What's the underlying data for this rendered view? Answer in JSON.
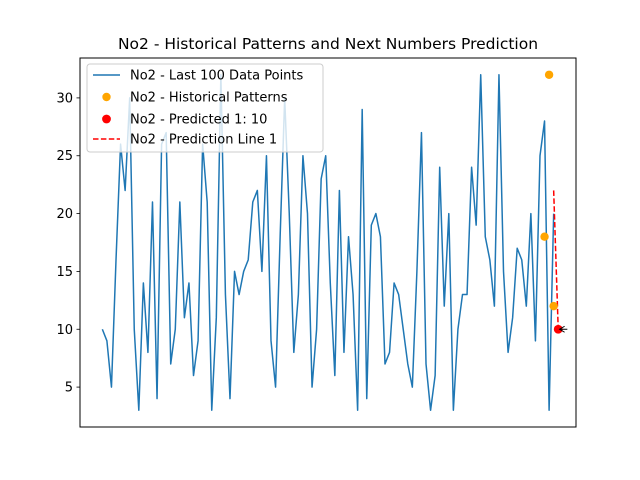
{
  "chart_data": {
    "type": "line",
    "title": "No2 - Historical Patterns and Next Numbers Prediction",
    "xlabel": "",
    "ylabel": "",
    "xlim": [
      -4.9,
      103.9
    ],
    "ylim": [
      1.55,
      33.45
    ],
    "yticks": [
      5,
      10,
      15,
      20,
      25,
      30
    ],
    "xticks_visible": false,
    "grid": false,
    "legend_position": "top-left",
    "colors": {
      "line": "#1f77b4",
      "patterns": "#ffa500",
      "predicted": "#ff0000",
      "prediction_line": "#ff0000",
      "arrow": "#000000"
    },
    "series": [
      {
        "name": "No2 - Last 100 Data Points",
        "kind": "line",
        "x_start": 0,
        "values": [
          10,
          9,
          5,
          16,
          26,
          22,
          30,
          10,
          3,
          14,
          8,
          21,
          4,
          26,
          27,
          7,
          10,
          21,
          11,
          14,
          6,
          9,
          26,
          21,
          3,
          11,
          32,
          13,
          4,
          15,
          13,
          15,
          16,
          21,
          22,
          15,
          25,
          9,
          5,
          18,
          30,
          20,
          8,
          13,
          25,
          20,
          5,
          10,
          23,
          25,
          14,
          6,
          22,
          8,
          18,
          13,
          3,
          29,
          4,
          19,
          20,
          18,
          7,
          8,
          14,
          13,
          10,
          7,
          5,
          15,
          27,
          7,
          3,
          6,
          24,
          12,
          20,
          3,
          10,
          13,
          13,
          24,
          19,
          32,
          18,
          16,
          12,
          32,
          15,
          8,
          11,
          17,
          16,
          12,
          20,
          9,
          25,
          28,
          3,
          20
        ]
      },
      {
        "name": "No2 - Historical Patterns",
        "kind": "scatter",
        "points": [
          [
            97,
            18
          ],
          [
            98,
            32
          ],
          [
            99,
            12
          ]
        ]
      },
      {
        "name": "No2 - Predicted 1: 10",
        "kind": "scatter",
        "points": [
          [
            100,
            10
          ]
        ]
      },
      {
        "name": "No2 - Prediction Line 1",
        "kind": "dashed-line",
        "points": [
          [
            99,
            22
          ],
          [
            100,
            10
          ]
        ]
      }
    ],
    "annotations": [
      {
        "type": "arrow",
        "from": [
          102,
          10
        ],
        "to": [
          100.3,
          10
        ]
      }
    ]
  }
}
